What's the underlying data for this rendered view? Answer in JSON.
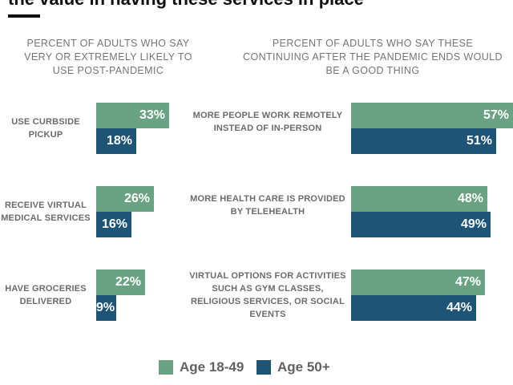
{
  "headline": "the value in having these services in place",
  "colors": {
    "young": "#6aa383",
    "old": "#1e5577"
  },
  "chart_data": [
    {
      "type": "bar",
      "orientation": "horizontal",
      "title": "PERCENT OF ADULTS WHO SAY VERY OR EXTREMELY LIKELY TO USE POST-PANDEMIC",
      "categories": [
        "USE CURBSIDE PICKUP",
        "RECEIVE VIRTUAL MEDICAL SERVICES",
        "HAVE GROCERIES DELIVERED"
      ],
      "series": [
        {
          "name": "Age 18-49",
          "values": [
            33,
            26,
            22
          ]
        },
        {
          "name": "Age 50+",
          "values": [
            18,
            16,
            9
          ]
        }
      ],
      "unit": "%",
      "xlim": [
        0,
        42
      ],
      "legend": "bottom-center"
    },
    {
      "type": "bar",
      "orientation": "horizontal",
      "title": "PERCENT OF ADULTS WHO SAY THESE CONTINUING AFTER THE PANDEMIC ENDS WOULD BE A GOOD THING",
      "categories": [
        "MORE PEOPLE WORK REMOTELY INSTEAD OF IN-PERSON",
        "MORE HEALTH CARE IS PROVIDED BY TELEHEALTH",
        "VIRTUAL OPTIONS FOR ACTIVITIES SUCH AS GYM CLASSES, RELIGIOUS SERVICES, OR SOCIAL EVENTS"
      ],
      "series": [
        {
          "name": "Age 18-49",
          "values": [
            57,
            48,
            47
          ]
        },
        {
          "name": "Age 50+",
          "values": [
            51,
            49,
            44
          ]
        }
      ],
      "unit": "%",
      "xlim": [
        0,
        57
      ],
      "legend": "bottom-center"
    }
  ],
  "legend": [
    {
      "label": "Age 18-49",
      "color": "#6aa383"
    },
    {
      "label": "Age 50+",
      "color": "#1e5577"
    }
  ]
}
